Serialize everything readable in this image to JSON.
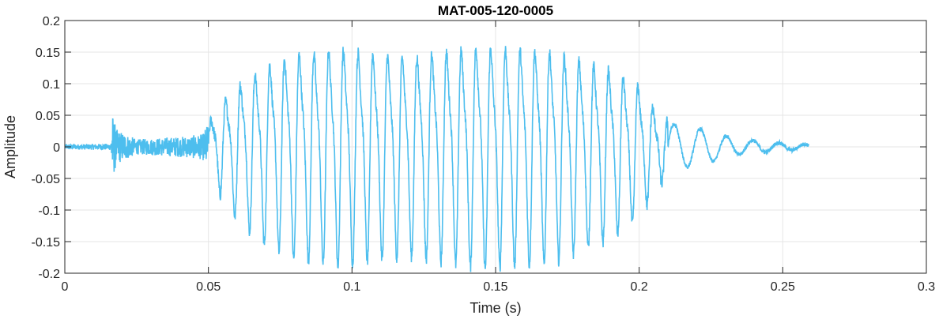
{
  "chart_data": {
    "type": "line",
    "title": "MAT-005-120-0005",
    "xlabel": "Time (s)",
    "ylabel": "Amplitude",
    "xlim": [
      0,
      0.3
    ],
    "ylim": [
      -0.2,
      0.2
    ],
    "xticks": [
      0,
      0.05,
      0.1,
      0.15,
      0.2,
      0.25,
      0.3
    ],
    "xtick_labels": [
      "0",
      "0.05",
      "0.1",
      "0.15",
      "0.2",
      "0.25",
      "0.3"
    ],
    "yticks": [
      -0.2,
      -0.15,
      -0.1,
      -0.05,
      0,
      0.05,
      0.1,
      0.15,
      0.2
    ],
    "ytick_labels": [
      "-0.2",
      "-0.15",
      "-0.1",
      "-0.05",
      "0",
      "0.05",
      "0.1",
      "0.15",
      "0.2"
    ],
    "grid": true,
    "line_color": "#4DBEEE",
    "grid_color": "#e6e6e6",
    "axis_color": "#262626",
    "series": [
      {
        "x_start": 0,
        "x_end": 0.259,
        "envelope": [
          {
            "t": 0.0,
            "amp": 0.004
          },
          {
            "t": 0.016,
            "amp": 0.005
          },
          {
            "t": 0.0165,
            "amp": 0.055
          },
          {
            "t": 0.018,
            "amp": 0.028
          },
          {
            "t": 0.025,
            "amp": 0.012
          },
          {
            "t": 0.04,
            "amp": 0.016
          },
          {
            "t": 0.048,
            "amp": 0.02
          },
          {
            "t": 0.052,
            "amp": 0.06
          },
          {
            "t": 0.06,
            "amp": 0.11
          },
          {
            "t": 0.07,
            "amp": 0.15
          },
          {
            "t": 0.08,
            "amp": 0.17
          },
          {
            "t": 0.095,
            "amp": 0.18
          },
          {
            "t": 0.12,
            "amp": 0.165
          },
          {
            "t": 0.145,
            "amp": 0.185
          },
          {
            "t": 0.17,
            "amp": 0.175
          },
          {
            "t": 0.19,
            "amp": 0.14
          },
          {
            "t": 0.2,
            "amp": 0.11
          },
          {
            "t": 0.205,
            "amp": 0.07
          },
          {
            "t": 0.212,
            "amp": 0.035
          },
          {
            "t": 0.22,
            "amp": 0.03
          },
          {
            "t": 0.235,
            "amp": 0.012
          },
          {
            "t": 0.25,
            "amp": 0.006
          },
          {
            "t": 0.259,
            "amp": 0.004
          }
        ]
      }
    ]
  }
}
